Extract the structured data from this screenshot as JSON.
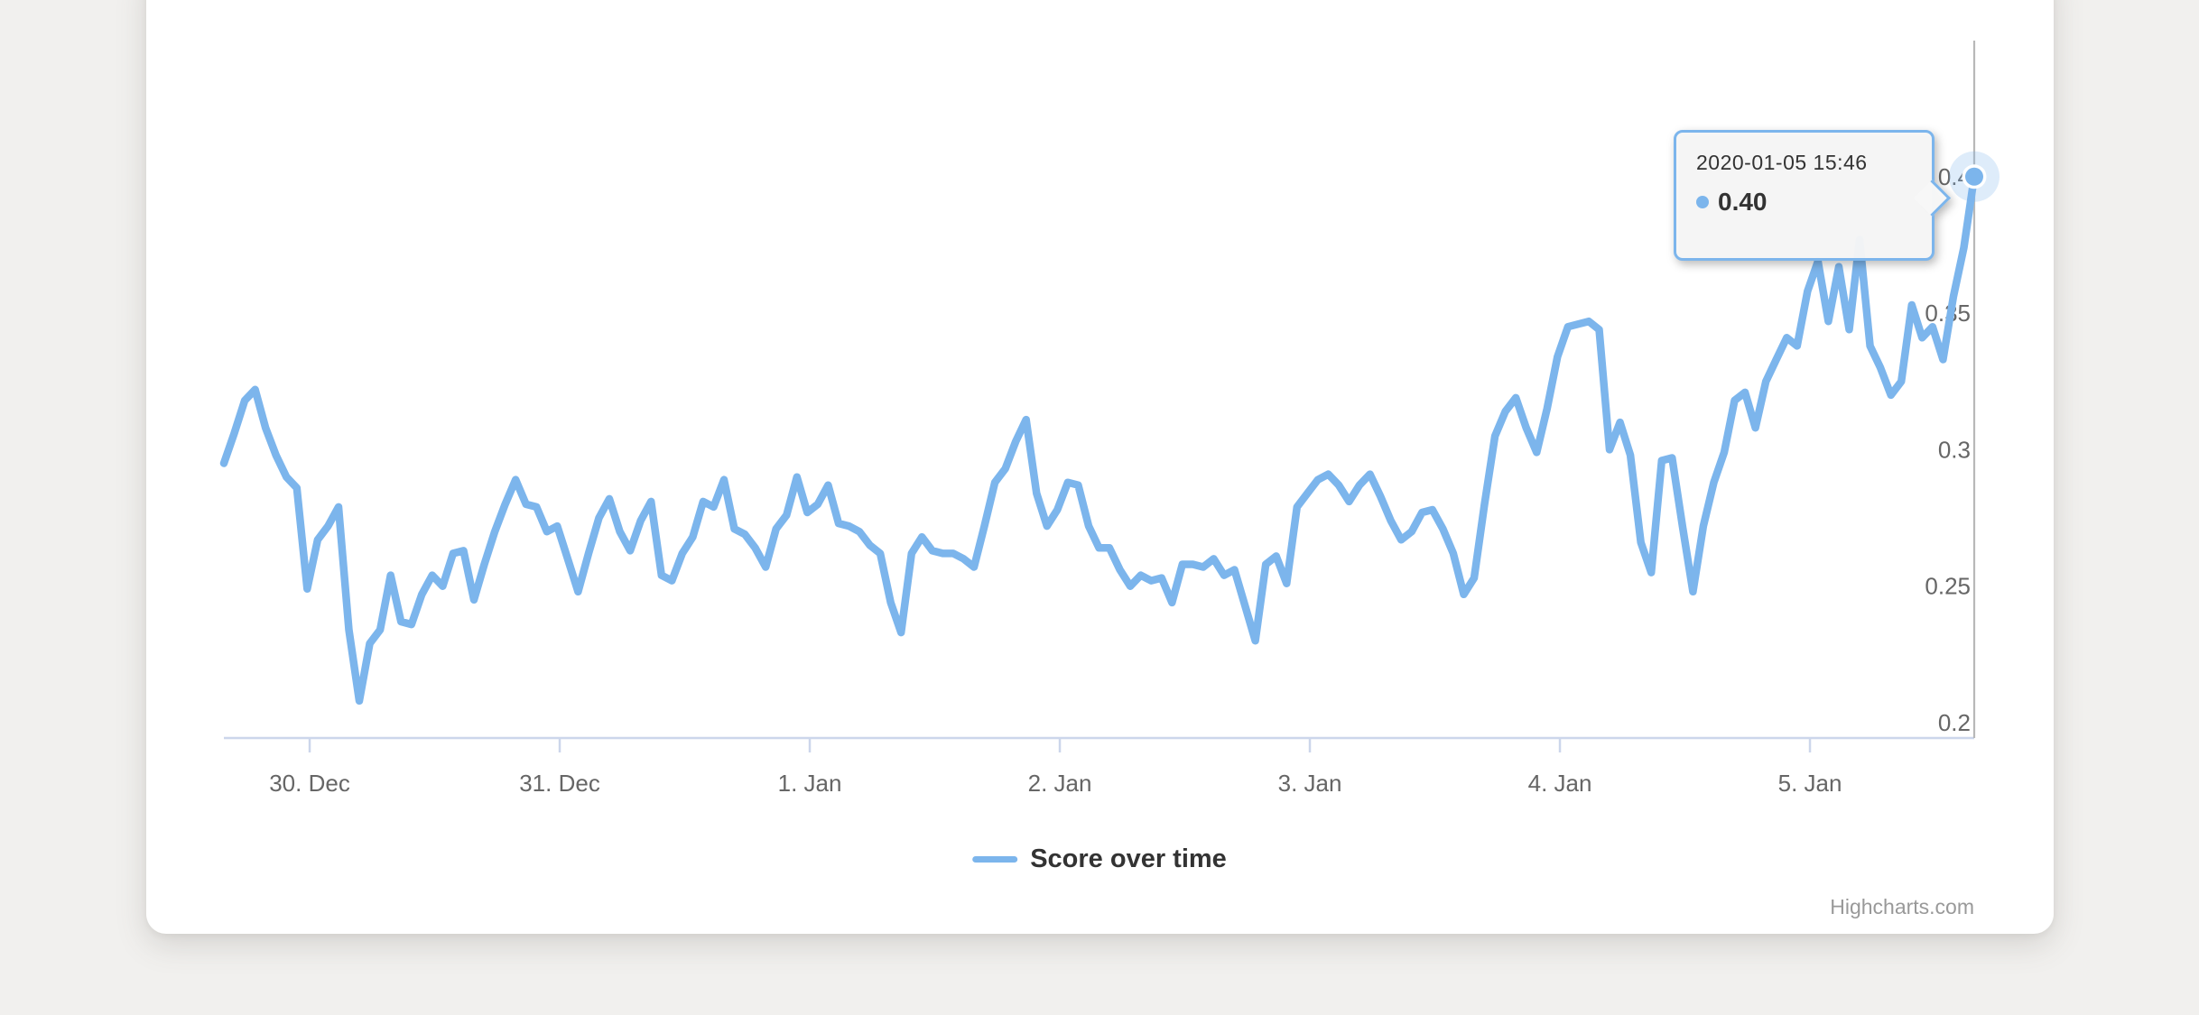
{
  "page": {
    "background_color": "#f1f0ee"
  },
  "card": {
    "background_color": "#ffffff"
  },
  "tooltip": {
    "header": "2020-01-05 15:46",
    "value": "0.40",
    "bullet_color": "#7cb5ec",
    "border_color": "#7cb5ec",
    "background_color": "#f7f7f7"
  },
  "legend": {
    "label": "Score over time",
    "symbol_color": "#7cb5ec",
    "position": "bottom-center"
  },
  "credits": {
    "label": "Highcharts.com",
    "color": "#999999"
  },
  "chart_data": {
    "type": "line",
    "title": "",
    "xlabel": "",
    "ylabel": "",
    "grid": "off",
    "legend_position": "bottom-center",
    "x_tick_labels": [
      "30. Dec",
      "31. Dec",
      "1. Jan",
      "2. Jan",
      "3. Jan",
      "4. Jan",
      "5. Jan"
    ],
    "y_ticks": [
      0.2,
      0.25,
      0.3,
      0.35,
      0.4
    ],
    "y_tick_labels": [
      "0.2",
      "0.25",
      "0.3",
      "0.35",
      "0.4"
    ],
    "ylim": [
      0.194,
      0.45
    ],
    "axis_color": "#ccd6eb",
    "tick_label_color": "#666666",
    "crosshair_color": "#b8b8b8",
    "hours_between_points": 1,
    "end_time_label": "2020-01-05 15:46",
    "hovered_point": {
      "time": "2020-01-05 15:46",
      "value": 0.4
    },
    "series": [
      {
        "name": "Score over time",
        "color": "#7cb5ec",
        "values": [
          0.295,
          0.306,
          0.318,
          0.322,
          0.308,
          0.298,
          0.29,
          0.286,
          0.249,
          0.267,
          0.272,
          0.279,
          0.234,
          0.208,
          0.229,
          0.234,
          0.254,
          0.237,
          0.236,
          0.247,
          0.254,
          0.25,
          0.262,
          0.263,
          0.245,
          0.258,
          0.27,
          0.28,
          0.289,
          0.28,
          0.279,
          0.27,
          0.272,
          0.26,
          0.248,
          0.262,
          0.275,
          0.282,
          0.27,
          0.263,
          0.274,
          0.281,
          0.254,
          0.252,
          0.262,
          0.268,
          0.281,
          0.279,
          0.289,
          0.271,
          0.269,
          0.264,
          0.257,
          0.271,
          0.276,
          0.29,
          0.277,
          0.28,
          0.287,
          0.273,
          0.272,
          0.27,
          0.265,
          0.262,
          0.244,
          0.233,
          0.262,
          0.268,
          0.263,
          0.262,
          0.262,
          0.26,
          0.257,
          0.272,
          0.288,
          0.293,
          0.303,
          0.311,
          0.284,
          0.272,
          0.278,
          0.288,
          0.287,
          0.272,
          0.264,
          0.264,
          0.256,
          0.25,
          0.254,
          0.252,
          0.253,
          0.244,
          0.258,
          0.258,
          0.257,
          0.26,
          0.254,
          0.256,
          0.243,
          0.23,
          0.258,
          0.261,
          0.251,
          0.279,
          0.284,
          0.289,
          0.291,
          0.287,
          0.281,
          0.287,
          0.291,
          0.283,
          0.274,
          0.267,
          0.27,
          0.277,
          0.278,
          0.271,
          0.262,
          0.247,
          0.253,
          0.28,
          0.305,
          0.314,
          0.319,
          0.308,
          0.299,
          0.315,
          0.334,
          0.345,
          0.346,
          0.347,
          0.344,
          0.3,
          0.31,
          0.298,
          0.266,
          0.255,
          0.296,
          0.297,
          0.272,
          0.248,
          0.272,
          0.288,
          0.299,
          0.318,
          0.321,
          0.308,
          0.325,
          0.333,
          0.341,
          0.338,
          0.358,
          0.369,
          0.347,
          0.367,
          0.344,
          0.377,
          0.338,
          0.33,
          0.32,
          0.325,
          0.353,
          0.341,
          0.345,
          0.333,
          0.356,
          0.374,
          0.4
        ]
      }
    ]
  }
}
